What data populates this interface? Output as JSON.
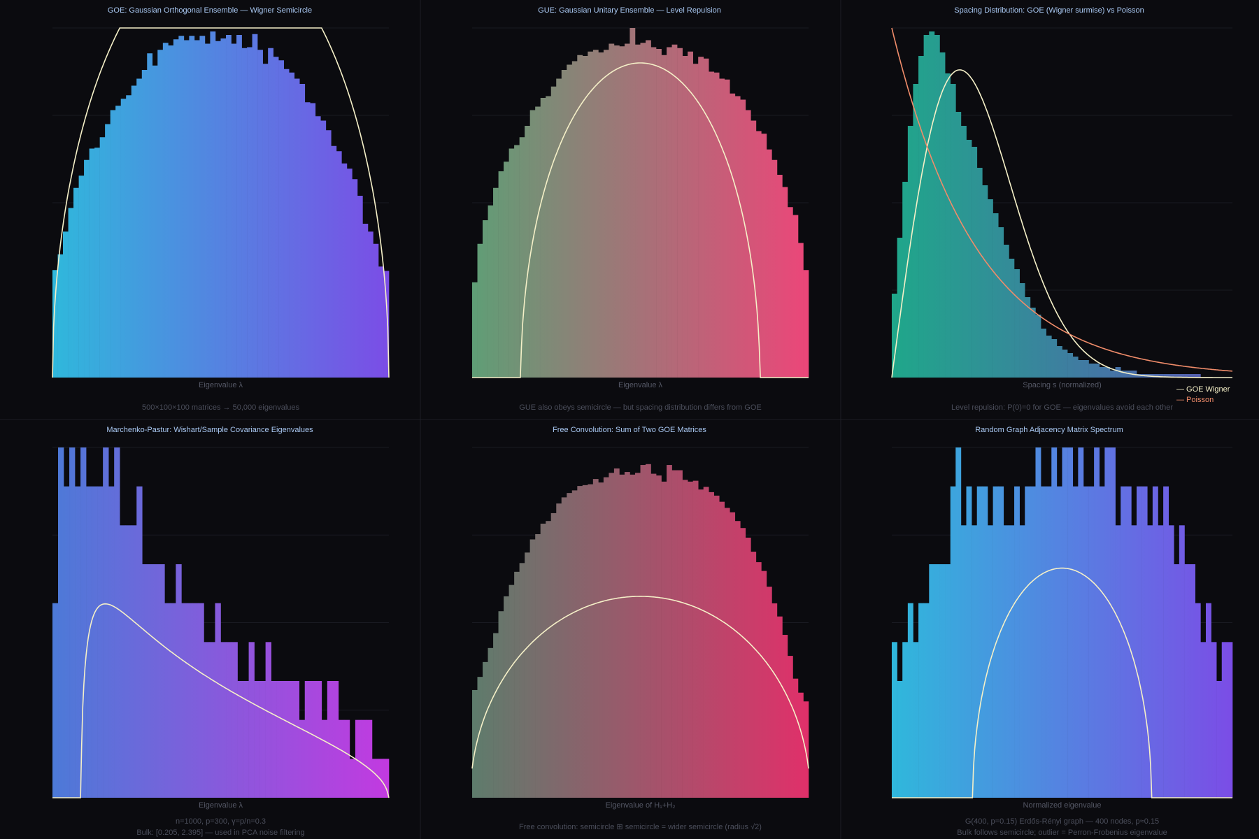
{
  "chart_data": [
    {
      "id": "goe",
      "type": "bar",
      "title": "GOE: Gaussian Orthogonal Ensemble — Wigner Semicircle",
      "xlabel": "Eigenvalue λ",
      "caption": [
        "500×100×100 matrices → 50,000 eigenvalues"
      ],
      "gradient": [
        "#2fb8dc",
        "#7b4de6"
      ],
      "curve_color": "#f5f0c8",
      "xlim": [
        -2,
        2
      ],
      "ylim": [
        0,
        0.4
      ],
      "bar_width": 0.0625,
      "x": [
        -1.969,
        -1.906,
        -1.844,
        -1.781,
        -1.719,
        -1.656,
        -1.594,
        -1.531,
        -1.469,
        -1.406,
        -1.344,
        -1.281,
        -1.219,
        -1.156,
        -1.094,
        -1.031,
        -0.969,
        -0.906,
        -0.844,
        -0.781,
        -0.719,
        -0.656,
        -0.594,
        -0.531,
        -0.469,
        -0.406,
        -0.344,
        -0.281,
        -0.219,
        -0.156,
        -0.094,
        -0.031,
        0.031,
        0.094,
        0.156,
        0.219,
        0.281,
        0.344,
        0.406,
        0.469,
        0.531,
        0.594,
        0.656,
        0.719,
        0.781,
        0.844,
        0.906,
        0.969,
        1.031,
        1.094,
        1.156,
        1.219,
        1.281,
        1.344,
        1.406,
        1.469,
        1.531,
        1.594,
        1.656,
        1.719,
        1.781,
        1.844,
        1.906,
        1.969
      ],
      "values": [
        0.123,
        0.141,
        0.167,
        0.194,
        0.217,
        0.231,
        0.249,
        0.262,
        0.263,
        0.275,
        0.29,
        0.306,
        0.311,
        0.319,
        0.323,
        0.334,
        0.342,
        0.352,
        0.371,
        0.357,
        0.375,
        0.383,
        0.38,
        0.387,
        0.391,
        0.386,
        0.391,
        0.386,
        0.391,
        0.382,
        0.396,
        0.385,
        0.388,
        0.392,
        0.382,
        0.392,
        0.377,
        0.378,
        0.393,
        0.375,
        0.359,
        0.377,
        0.367,
        0.363,
        0.353,
        0.349,
        0.342,
        0.336,
        0.315,
        0.314,
        0.299,
        0.294,
        0.283,
        0.265,
        0.259,
        0.245,
        0.239,
        0.227,
        0.208,
        0.176,
        0.167,
        0.153,
        0.127,
        0.122
      ],
      "curve": {
        "kind": "semicircle",
        "radius": 2.0,
        "scale": 0.5
      },
      "legend": []
    },
    {
      "id": "gue",
      "type": "bar",
      "title": "GUE: Gaussian Unitary Ensemble — Level Repulsion",
      "xlabel": "Eigenvalue λ",
      "caption": [
        "GUE also obeys semicircle — but spacing distribution differs from GOE"
      ],
      "gradient": [
        "#5f9e76",
        "#ec4679"
      ],
      "curve_color": "#f5f0c8",
      "xlim": [
        -2,
        2
      ],
      "ylim": [
        0,
        0.4
      ],
      "bar_width": 0.0625,
      "x": [
        -1.969,
        -1.906,
        -1.844,
        -1.781,
        -1.719,
        -1.656,
        -1.594,
        -1.531,
        -1.469,
        -1.406,
        -1.344,
        -1.281,
        -1.219,
        -1.156,
        -1.094,
        -1.031,
        -0.969,
        -0.906,
        -0.844,
        -0.781,
        -0.719,
        -0.656,
        -0.594,
        -0.531,
        -0.469,
        -0.406,
        -0.344,
        -0.281,
        -0.219,
        -0.156,
        -0.094,
        -0.031,
        0.031,
        0.094,
        0.156,
        0.219,
        0.281,
        0.344,
        0.406,
        0.469,
        0.531,
        0.594,
        0.656,
        0.719,
        0.781,
        0.844,
        0.906,
        0.969,
        1.031,
        1.094,
        1.156,
        1.219,
        1.281,
        1.344,
        1.406,
        1.469,
        1.531,
        1.594,
        1.656,
        1.719,
        1.781,
        1.844,
        1.906,
        1.969
      ],
      "values": [
        0.109,
        0.153,
        0.18,
        0.197,
        0.217,
        0.236,
        0.247,
        0.262,
        0.266,
        0.275,
        0.288,
        0.306,
        0.31,
        0.32,
        0.322,
        0.333,
        0.342,
        0.352,
        0.358,
        0.362,
        0.369,
        0.368,
        0.373,
        0.375,
        0.372,
        0.375,
        0.382,
        0.38,
        0.379,
        0.382,
        0.4,
        0.381,
        0.383,
        0.386,
        0.378,
        0.376,
        0.369,
        0.378,
        0.381,
        0.377,
        0.368,
        0.373,
        0.359,
        0.367,
        0.365,
        0.35,
        0.349,
        0.342,
        0.341,
        0.325,
        0.322,
        0.318,
        0.306,
        0.294,
        0.282,
        0.279,
        0.261,
        0.249,
        0.232,
        0.218,
        0.195,
        0.186,
        0.154,
        0.123
      ],
      "curve": {
        "kind": "semicircle",
        "radius": 1.42,
        "scale": 0.36
      },
      "legend": []
    },
    {
      "id": "spacing",
      "type": "bar",
      "title": "Spacing Distribution: GOE (Wigner surmise) vs Poisson",
      "xlabel": "Spacing s (normalized)",
      "caption": [
        "Level repulsion: P(0)=0 for GOE — eigenvalues avoid each other"
      ],
      "gradient": [
        "#1fa78a",
        "#5a58b4"
      ],
      "curve_color": "#f5f0c8",
      "curve2_color": "#f08c6a",
      "xlim": [
        0,
        4
      ],
      "ylim": [
        0,
        1.0
      ],
      "bar_width": 0.0625,
      "x": [
        0.031,
        0.094,
        0.156,
        0.219,
        0.281,
        0.344,
        0.406,
        0.469,
        0.531,
        0.594,
        0.656,
        0.719,
        0.781,
        0.844,
        0.906,
        0.969,
        1.031,
        1.094,
        1.156,
        1.219,
        1.281,
        1.344,
        1.406,
        1.469,
        1.531,
        1.594,
        1.656,
        1.719,
        1.781,
        1.844,
        1.906,
        1.969,
        2.031,
        2.094,
        2.156,
        2.219,
        2.281,
        2.344,
        2.406,
        2.469,
        2.531,
        2.594,
        2.656,
        2.719,
        2.781,
        2.844,
        2.906,
        2.969,
        3.031,
        3.094,
        3.156,
        3.219,
        3.281,
        3.344,
        3.406,
        3.469,
        3.531,
        3.594,
        3.656,
        3.719,
        3.781,
        3.844,
        3.906,
        3.969
      ],
      "values": [
        0.24,
        0.4,
        0.56,
        0.72,
        0.84,
        0.92,
        0.98,
        0.99,
        0.98,
        0.93,
        0.87,
        0.84,
        0.76,
        0.72,
        0.68,
        0.66,
        0.6,
        0.55,
        0.51,
        0.47,
        0.43,
        0.38,
        0.34,
        0.31,
        0.27,
        0.23,
        0.2,
        0.18,
        0.14,
        0.12,
        0.11,
        0.09,
        0.08,
        0.07,
        0.06,
        0.05,
        0.05,
        0.04,
        0.04,
        0.03,
        0.03,
        0.02,
        0.03,
        0.02,
        0.02,
        0.02,
        0.01,
        0.01,
        0.01,
        0.01,
        0.01,
        0.01,
        0.01,
        0.01,
        0.01,
        0.01,
        0.01,
        0.01,
        0.0,
        0.0,
        0.0,
        0.0,
        0.0,
        0.0
      ],
      "curve": {
        "kind": "wigner_surmise",
        "scale": 0.88
      },
      "curve2": {
        "kind": "poisson",
        "scale": 1.0
      },
      "legend": [
        "— GOE Wigner",
        "— Poisson"
      ]
    },
    {
      "id": "mp",
      "type": "bar",
      "title": "Marchenko-Pastur: Wishart/Sample Covariance Eigenvalues",
      "xlabel": "Eigenvalue λ",
      "caption": [
        "n=1000, p=300, γ=p/n=0.3",
        "Bulk: [0.205, 2.395] — used in PCA noise filtering"
      ],
      "gradient": [
        "#4c7ad8",
        "#c23ae0"
      ],
      "curve_color": "#f5f0c8",
      "xlim": [
        0,
        2.4
      ],
      "ylim": [
        0,
        9
      ],
      "bar_width": 0.04,
      "x": [
        0.02,
        0.06,
        0.1,
        0.14,
        0.18,
        0.22,
        0.26,
        0.3,
        0.34,
        0.38,
        0.42,
        0.46,
        0.5,
        0.54,
        0.58,
        0.62,
        0.66,
        0.7,
        0.74,
        0.78,
        0.82,
        0.86,
        0.9,
        0.94,
        0.98,
        1.02,
        1.06,
        1.1,
        1.14,
        1.18,
        1.22,
        1.26,
        1.3,
        1.34,
        1.38,
        1.42,
        1.46,
        1.5,
        1.54,
        1.58,
        1.62,
        1.66,
        1.7,
        1.74,
        1.78,
        1.82,
        1.86,
        1.9,
        1.94,
        1.98,
        2.02,
        2.06,
        2.1,
        2.14,
        2.18,
        2.22,
        2.26,
        2.3,
        2.34,
        2.38
      ],
      "values": [
        5,
        9,
        8,
        9,
        8,
        9,
        8,
        8,
        8,
        9,
        8,
        9,
        7,
        7,
        7,
        8,
        6,
        6,
        6,
        6,
        5,
        5,
        6,
        5,
        5,
        5,
        5,
        4,
        4,
        5,
        4,
        4,
        4,
        3,
        3,
        4,
        3,
        3,
        4,
        3,
        3,
        3,
        3,
        3,
        2,
        3,
        3,
        3,
        2,
        3,
        3,
        2,
        2,
        1,
        2,
        2,
        2,
        1,
        1,
        1
      ],
      "curve": {
        "kind": "marchenko_pastur",
        "gamma": 0.3,
        "scale": 9.0
      },
      "legend": []
    },
    {
      "id": "freeconv",
      "type": "bar",
      "title": "Free Convolution: Sum of Two GOE Matrices",
      "xlabel": "Eigenvalue of H₁+H₂",
      "caption": [
        "Free convolution: semicircle ⊞ semicircle = wider semicircle (radius √2)"
      ],
      "gradient": [
        "#5e7c6c",
        "#e0306a"
      ],
      "curve_color": "#f5f0c8",
      "xlim": [
        -2.8,
        2.8
      ],
      "ylim": [
        0,
        0.4
      ],
      "bar_width": 0.0875,
      "x": [
        -2.756,
        -2.669,
        -2.581,
        -2.494,
        -2.406,
        -2.319,
        -2.231,
        -2.144,
        -2.056,
        -1.969,
        -1.881,
        -1.794,
        -1.706,
        -1.619,
        -1.531,
        -1.444,
        -1.356,
        -1.269,
        -1.181,
        -1.094,
        -1.006,
        -0.919,
        -0.831,
        -0.744,
        -0.656,
        -0.569,
        -0.481,
        -0.394,
        -0.306,
        -0.219,
        -0.131,
        -0.044,
        0.044,
        0.131,
        0.219,
        0.306,
        0.394,
        0.481,
        0.569,
        0.656,
        0.744,
        0.831,
        0.919,
        1.006,
        1.094,
        1.181,
        1.269,
        1.356,
        1.444,
        1.531,
        1.619,
        1.706,
        1.794,
        1.881,
        1.969,
        2.056,
        2.144,
        2.231,
        2.319,
        2.406,
        2.494,
        2.581,
        2.669,
        2.756
      ],
      "values": [
        0.123,
        0.138,
        0.155,
        0.171,
        0.188,
        0.213,
        0.23,
        0.243,
        0.258,
        0.268,
        0.28,
        0.295,
        0.301,
        0.313,
        0.316,
        0.325,
        0.336,
        0.343,
        0.348,
        0.351,
        0.356,
        0.357,
        0.358,
        0.364,
        0.36,
        0.366,
        0.371,
        0.376,
        0.369,
        0.372,
        0.369,
        0.371,
        0.38,
        0.381,
        0.37,
        0.368,
        0.361,
        0.38,
        0.374,
        0.374,
        0.363,
        0.361,
        0.362,
        0.352,
        0.355,
        0.349,
        0.345,
        0.338,
        0.331,
        0.326,
        0.316,
        0.308,
        0.297,
        0.281,
        0.269,
        0.259,
        0.241,
        0.222,
        0.207,
        0.186,
        0.162,
        0.136,
        0.12,
        0.11
      ],
      "curve": {
        "kind": "semicircle",
        "radius": 2.83,
        "scale": 0.23
      },
      "legend": []
    },
    {
      "id": "graph",
      "type": "bar",
      "title": "Random Graph Adjacency Matrix Spectrum",
      "xlabel": "Normalized eigenvalue",
      "caption": [
        "G(400, p=0.15) Erdős-Rényi graph — 400 nodes, p≈0.15",
        "Bulk follows semicircle; outlier = Perron-Frobenius eigenvalue"
      ],
      "gradient": [
        "#2fb8dc",
        "#7b4de6"
      ],
      "curve_color": "#f5f0c8",
      "xlim": [
        -2,
        2
      ],
      "ylim": [
        0,
        9
      ],
      "bar_width": 0.0625,
      "x": [
        -1.969,
        -1.906,
        -1.844,
        -1.781,
        -1.719,
        -1.656,
        -1.594,
        -1.531,
        -1.469,
        -1.406,
        -1.344,
        -1.281,
        -1.219,
        -1.156,
        -1.094,
        -1.031,
        -0.969,
        -0.906,
        -0.844,
        -0.781,
        -0.719,
        -0.656,
        -0.594,
        -0.531,
        -0.469,
        -0.406,
        -0.344,
        -0.281,
        -0.219,
        -0.156,
        -0.094,
        -0.031,
        0.031,
        0.094,
        0.156,
        0.219,
        0.281,
        0.344,
        0.406,
        0.469,
        0.531,
        0.594,
        0.656,
        0.719,
        0.781,
        0.844,
        0.906,
        0.969,
        1.031,
        1.094,
        1.156,
        1.219,
        1.281,
        1.344,
        1.406,
        1.469,
        1.531,
        1.594,
        1.656,
        1.719,
        1.781,
        1.844,
        1.906,
        1.969
      ],
      "values": [
        4,
        3,
        4,
        5,
        4,
        5,
        5,
        6,
        6,
        6,
        6,
        8,
        9,
        7,
        8,
        7,
        8,
        8,
        7,
        8,
        8,
        7,
        7,
        8,
        7,
        8,
        8,
        9,
        8,
        8,
        9,
        8,
        9,
        9,
        8,
        9,
        8,
        8,
        9,
        8,
        9,
        9,
        7,
        8,
        8,
        7,
        8,
        8,
        7,
        8,
        7,
        8,
        7,
        6,
        7,
        6,
        6,
        5,
        4,
        5,
        4,
        3,
        4,
        4
      ],
      "curve": {
        "kind": "semicircle",
        "radius": 1.05,
        "scale": 5.9
      },
      "legend": []
    }
  ]
}
